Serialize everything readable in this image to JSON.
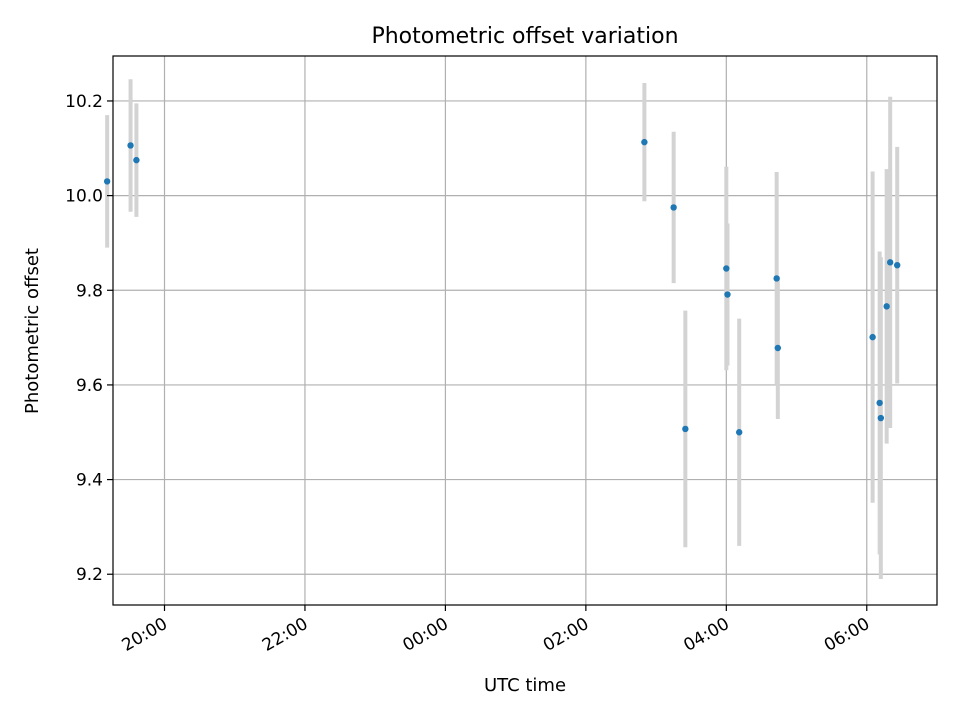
{
  "chart_data": {
    "type": "scatter",
    "title": "Photometric offset variation",
    "xlabel": "UTC time",
    "ylabel": "Photometric offset",
    "x_axis_kind": "time",
    "xlim": [
      "19:16",
      "07:00"
    ],
    "ylim": [
      9.135,
      10.295
    ],
    "grid": true,
    "x_ticks": [
      "20:00",
      "22:00",
      "00:00",
      "02:00",
      "04:00",
      "06:00"
    ],
    "y_ticks": [
      9.2,
      9.4,
      9.6,
      9.8,
      10.0,
      10.2
    ],
    "y_tick_labels": [
      "9.2",
      "9.4",
      "9.6",
      "9.8",
      "10.0",
      "10.2"
    ],
    "marker_color": "#1f77b4",
    "errorbar_color": "#d3d3d3",
    "points": [
      {
        "time": "19:11",
        "y": 10.03,
        "err": 0.14
      },
      {
        "time": "19:31",
        "y": 10.106,
        "err": 0.14
      },
      {
        "time": "19:36",
        "y": 10.075,
        "err": 0.12
      },
      {
        "time": "02:50",
        "y": 10.113,
        "err": 0.125
      },
      {
        "time": "03:15",
        "y": 9.975,
        "err": 0.16
      },
      {
        "time": "03:25",
        "y": 9.507,
        "err": 0.25
      },
      {
        "time": "04:00",
        "y": 9.846,
        "err": 0.215
      },
      {
        "time": "04:01",
        "y": 9.791,
        "err": 0.15
      },
      {
        "time": "04:11",
        "y": 9.5,
        "err": 0.24
      },
      {
        "time": "04:43",
        "y": 9.825,
        "err": 0.225
      },
      {
        "time": "04:44",
        "y": 9.678,
        "err": 0.15
      },
      {
        "time": "06:05",
        "y": 9.701,
        "err": 0.35
      },
      {
        "time": "06:11",
        "y": 9.562,
        "err": 0.32
      },
      {
        "time": "06:12",
        "y": 9.53,
        "err": 0.34
      },
      {
        "time": "06:17",
        "y": 9.766,
        "err": 0.29
      },
      {
        "time": "06:20",
        "y": 9.859,
        "err": 0.35
      },
      {
        "time": "06:26",
        "y": 9.853,
        "err": 0.25
      }
    ]
  }
}
